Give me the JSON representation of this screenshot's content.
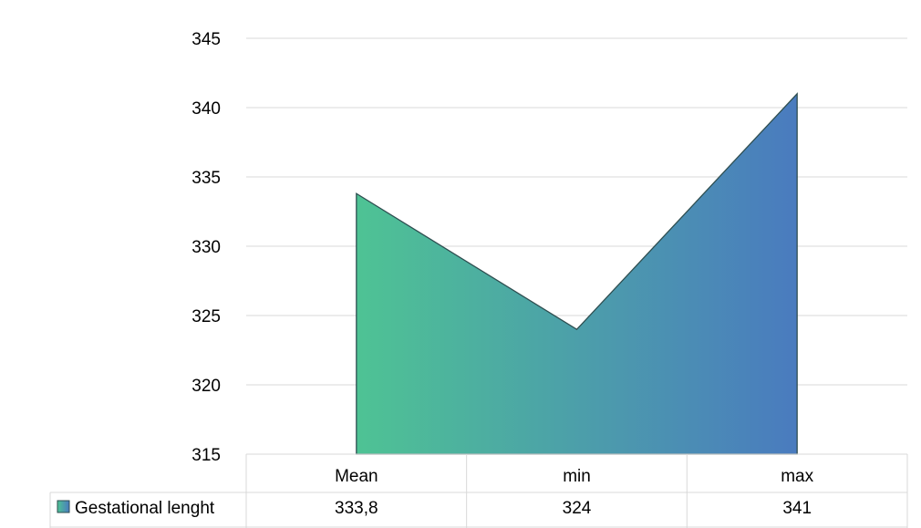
{
  "chart_data": {
    "type": "area",
    "categories": [
      "Mean",
      "min",
      "max"
    ],
    "series": [
      {
        "name": "Gestational lenght",
        "values": [
          333.8,
          324,
          341
        ],
        "value_labels": [
          "333,8",
          "324",
          "341"
        ]
      }
    ],
    "y_ticks": [
      "315",
      "320",
      "325",
      "330",
      "335",
      "340",
      "345"
    ],
    "ylim": [
      315,
      345
    ],
    "grid": true,
    "legend": "data-table",
    "colors": {
      "gradient_start": "#4ec394",
      "gradient_end": "#4a7bbf",
      "outline": "#2e4e50",
      "grid": "#d9d9d9"
    }
  }
}
